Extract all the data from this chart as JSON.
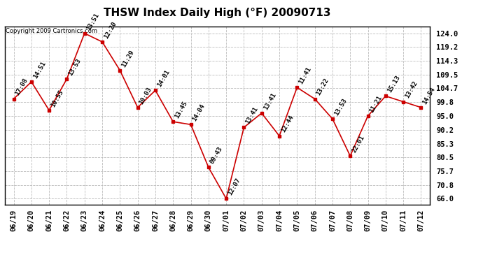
{
  "title": "THSW Index Daily High (°F) 20090713",
  "copyright": "Copyright 2009 Cartronics.com",
  "dates": [
    "06/19",
    "06/20",
    "06/21",
    "06/22",
    "06/23",
    "06/24",
    "06/25",
    "06/26",
    "06/27",
    "06/28",
    "06/29",
    "06/30",
    "07/01",
    "07/02",
    "07/03",
    "07/04",
    "07/05",
    "07/06",
    "07/07",
    "07/08",
    "07/09",
    "07/10",
    "07/11",
    "07/12"
  ],
  "values": [
    101.0,
    107.0,
    97.0,
    108.0,
    124.0,
    121.0,
    111.0,
    98.0,
    104.0,
    93.0,
    92.0,
    77.0,
    66.0,
    91.0,
    96.0,
    88.0,
    105.0,
    101.0,
    94.0,
    81.0,
    95.0,
    102.0,
    100.0,
    98.0
  ],
  "labels": [
    "17:08",
    "14:51",
    "10:55",
    "13:53",
    "13:51",
    "12:20",
    "11:29",
    "10:03",
    "14:01",
    "13:45",
    "14:04",
    "09:43",
    "12:07",
    "13:41",
    "13:41",
    "12:44",
    "11:41",
    "13:22",
    "13:53",
    "22:01",
    "11:21",
    "15:13",
    "13:42",
    "14:54"
  ],
  "line_color": "#cc0000",
  "marker_color": "#cc0000",
  "bg_color": "#ffffff",
  "grid_color": "#bbbbbb",
  "yticks": [
    66.0,
    70.8,
    75.7,
    80.5,
    85.3,
    90.2,
    95.0,
    99.8,
    104.7,
    109.5,
    114.3,
    119.2,
    124.0
  ],
  "ylim": [
    64.0,
    126.5
  ],
  "title_fontsize": 11,
  "label_fontsize": 6.5,
  "tick_fontsize": 7.5,
  "copyright_fontsize": 6
}
